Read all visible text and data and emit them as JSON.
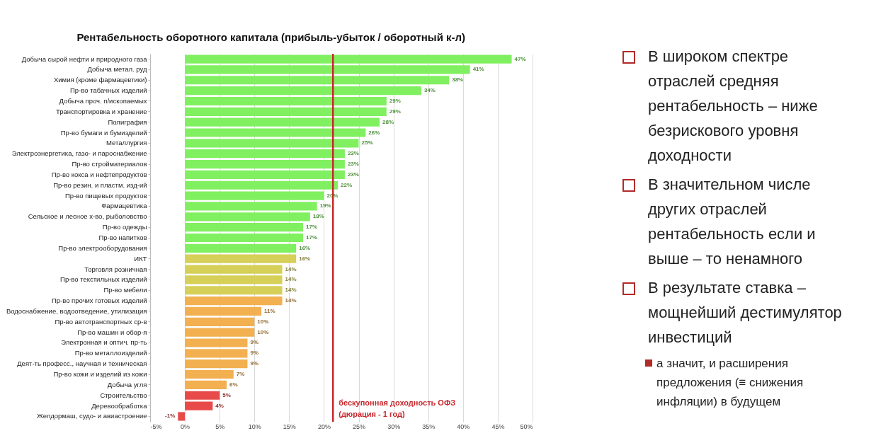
{
  "chart_data": {
    "type": "bar",
    "orientation": "horizontal",
    "title": "Рентабельность оборотного капитала (прибыль-убыток / оборотный к-л)",
    "categories": [
      "Добыча сырой нефти и природного газа",
      "Добыча метал. руд",
      "Химия (кроме фармацевтики)",
      "Пр-во табачных изделий",
      "Добыча проч. п/ископаемых",
      "Транспортировка и хранение",
      "Полиграфия",
      "Пр-во бумаги и бумизделий",
      "Металлургия",
      "Электроэнергетика, газо- и пароснабжение",
      "Пр-во стройматериалов",
      "Пр-во кокса и нефтепродуктов",
      "Пр-во резин. и пластм. изд-ий",
      "Пр-во пищевых продуктов",
      "Фармацевтика",
      "Сельское и лесное х-во, рыболовство",
      "Пр-во одежды",
      "Пр-во напитков",
      "Пр-во электрооборудования",
      "ИКТ",
      "Торговля розничная",
      "Пр-во текстильных изделий",
      "Пр-во мебели",
      "Пр-во прочих готовых изделий",
      "Водоснабжение, водоотведение, утилизация",
      "Пр-во автотранспортных ср-в",
      "Пр-во машин и обор-я",
      "Электронная и оптич. пр-ть",
      "Пр-во металлоизделий",
      "Деят-ть професс., научная и техническая",
      "Пр-во кожи и изделий из кожи",
      "Добыча угля",
      "Строительство",
      "Деревообработка",
      "Желдормаш, судо- и авиастроение"
    ],
    "values": [
      47,
      41,
      38,
      34,
      29,
      29,
      28,
      26,
      25,
      23,
      23,
      23,
      22,
      20,
      19,
      18,
      17,
      17,
      16,
      16,
      14,
      14,
      14,
      14,
      11,
      10,
      10,
      9,
      9,
      9,
      7,
      6,
      5,
      4,
      -1
    ],
    "value_labels": [
      "47%",
      "41%",
      "38%",
      "34%",
      "29%",
      "29%",
      "28%",
      "26%",
      "25%",
      "23%",
      "23%",
      "23%",
      "22%",
      "20%",
      "19%",
      "18%",
      "17%",
      "17%",
      "16%",
      "16%",
      "14%",
      "14%",
      "14%",
      "14%",
      "11%",
      "10%",
      "10%",
      "9%",
      "9%",
      "9%",
      "7%",
      "6%",
      "5%",
      "4%",
      "-1%"
    ],
    "colors": [
      "#80f060",
      "#80f060",
      "#80f060",
      "#80f060",
      "#80f060",
      "#80f060",
      "#80f060",
      "#80f060",
      "#80f060",
      "#80f060",
      "#80f060",
      "#80f060",
      "#80f060",
      "#80f060",
      "#80f060",
      "#80f060",
      "#80f060",
      "#80f060",
      "#80f060",
      "#d6cf58",
      "#d6cf58",
      "#d6cf58",
      "#d6cf58",
      "#f2b050",
      "#f2b050",
      "#f2b050",
      "#f2b050",
      "#f2b050",
      "#f2b050",
      "#f2b050",
      "#f2b050",
      "#f2b050",
      "#e84a4a",
      "#e84a4a",
      "#e84a4a"
    ],
    "xlim": [
      -5,
      50
    ],
    "xticks": [
      {
        "value": -5,
        "label": "-5%"
      },
      {
        "value": 0,
        "label": "0%"
      },
      {
        "value": 5,
        "label": "5%"
      },
      {
        "value": 10,
        "label": "10%"
      },
      {
        "value": 15,
        "label": "15%"
      },
      {
        "value": 20,
        "label": "20%"
      },
      {
        "value": 25,
        "label": "25%"
      },
      {
        "value": 30,
        "label": "30%"
      },
      {
        "value": 35,
        "label": "35%"
      },
      {
        "value": 40,
        "label": "40%"
      },
      {
        "value": 45,
        "label": "45%"
      },
      {
        "value": 50,
        "label": "50%"
      }
    ],
    "grid": "x",
    "ref_lines": [
      {
        "axis": "x",
        "value": 21.3,
        "label": "бескупонная доходность ОФЗ\n(дюрация - 1 год)",
        "color": "#c8282d"
      }
    ],
    "annotations": [
      "В широком спектре отраслей средняя рентабельность – ниже безрискового уровня доходности",
      "В значительном числе других отраслей рентабельность если и выше – то ненамного",
      "В результате ставка – мощнейший дестимулятор инвестиций",
      "а значит, и расширения предложения (≡ снижения инфляции) в будущем"
    ]
  }
}
